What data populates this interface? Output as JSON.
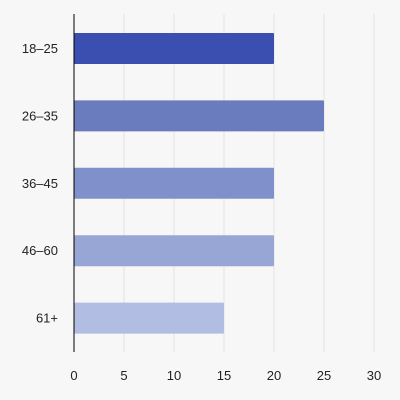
{
  "chart_data": {
    "type": "bar",
    "orientation": "horizontal",
    "title": "",
    "xlabel": "",
    "ylabel": "",
    "categories": [
      "18–25",
      "26–35",
      "36–45",
      "46–60",
      "61+"
    ],
    "values": [
      20,
      25,
      20,
      20,
      15
    ],
    "xlim": [
      0,
      30
    ],
    "x_ticks": [
      0,
      5,
      10,
      15,
      20,
      25,
      30
    ],
    "grid": "vertical",
    "legend": "none",
    "bar_colors": [
      "#3a4fb0",
      "#6a7cbd",
      "#8090cb",
      "#98a6d6",
      "#b2bde3"
    ],
    "colors": {
      "background": "#f7f7f7",
      "gridline": "#e3e3e3",
      "axis": "#000000",
      "text": "#222222"
    }
  }
}
